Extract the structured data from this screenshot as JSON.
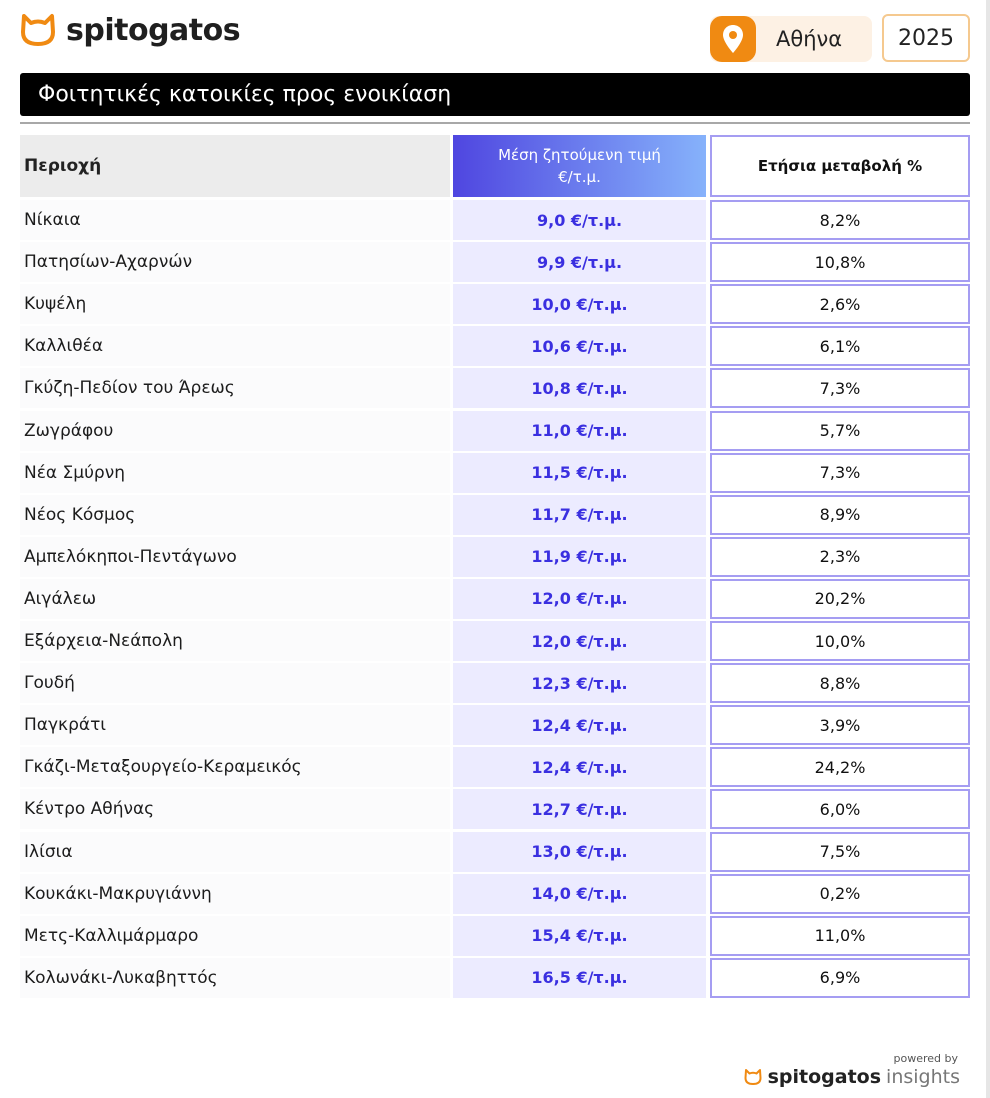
{
  "header": {
    "brand": "spitogatos",
    "location": "Αθήνα",
    "year": "2025",
    "title": "Φοιτητικές κατοικίες προς ενοικίαση"
  },
  "colors": {
    "accent_orange": "#f08a12",
    "price_text": "#3a2fe0",
    "price_bg": "#ecebff",
    "border_purple": "#a59df2"
  },
  "table": {
    "headers": {
      "area": "Περιοχή",
      "price": "Μέση ζητούμενη τιμή €/τ.μ.",
      "change": "Ετήσια μεταβολή %"
    },
    "rows": [
      {
        "area": "Νίκαια",
        "price": "9,0 €/τ.μ.",
        "change": "8,2%"
      },
      {
        "area": "Πατησίων-Αχαρνών",
        "price": "9,9 €/τ.μ.",
        "change": "10,8%"
      },
      {
        "area": "Κυψέλη",
        "price": "10,0 €/τ.μ.",
        "change": "2,6%"
      },
      {
        "area": "Καλλιθέα",
        "price": "10,6 €/τ.μ.",
        "change": "6,1%"
      },
      {
        "area": "Γκύζη-Πεδίον  του Άρεως",
        "price": "10,8 €/τ.μ.",
        "change": "7,3%"
      },
      {
        "area": "Ζωγράφου",
        "price": "11,0 €/τ.μ.",
        "change": "5,7%"
      },
      {
        "area": "Νέα Σμύρνη",
        "price": "11,5 €/τ.μ.",
        "change": "7,3%"
      },
      {
        "area": "Νέος Κόσμος",
        "price": "11,7 €/τ.μ.",
        "change": "8,9%"
      },
      {
        "area": "Αμπελόκηποι-Πεντάγωνο",
        "price": "11,9 €/τ.μ.",
        "change": "2,3%"
      },
      {
        "area": "Αιγάλεω",
        "price": "12,0 €/τ.μ.",
        "change": "20,2%"
      },
      {
        "area": "Εξάρχεια-Νεάπολη",
        "price": "12,0 €/τ.μ.",
        "change": "10,0%"
      },
      {
        "area": "Γουδή",
        "price": "12,3 €/τ.μ.",
        "change": "8,8%"
      },
      {
        "area": "Παγκράτι",
        "price": "12,4 €/τ.μ.",
        "change": "3,9%"
      },
      {
        "area": "Γκάζι-Μεταξουργείο-Κεραμεικός",
        "price": "12,4 €/τ.μ.",
        "change": "24,2%"
      },
      {
        "area": "Κέντρο Αθήνας",
        "price": "12,7 €/τ.μ.",
        "change": "6,0%"
      },
      {
        "area": "Ιλίσια",
        "price": "13,0 €/τ.μ.",
        "change": "7,5%"
      },
      {
        "area": "Κουκάκι-Μακρυγιάννη",
        "price": "14,0 €/τ.μ.",
        "change": "0,2%"
      },
      {
        "area": "Μετς-Καλλιμάρμαρο",
        "price": "15,4 €/τ.μ.",
        "change": "11,0%"
      },
      {
        "area": "Κολωνάκι-Λυκαβηττός",
        "price": "16,5 €/τ.μ.",
        "change": "6,9%"
      }
    ]
  },
  "footer": {
    "powered": "powered by",
    "brand": "spitogatos",
    "suffix": "insights"
  }
}
